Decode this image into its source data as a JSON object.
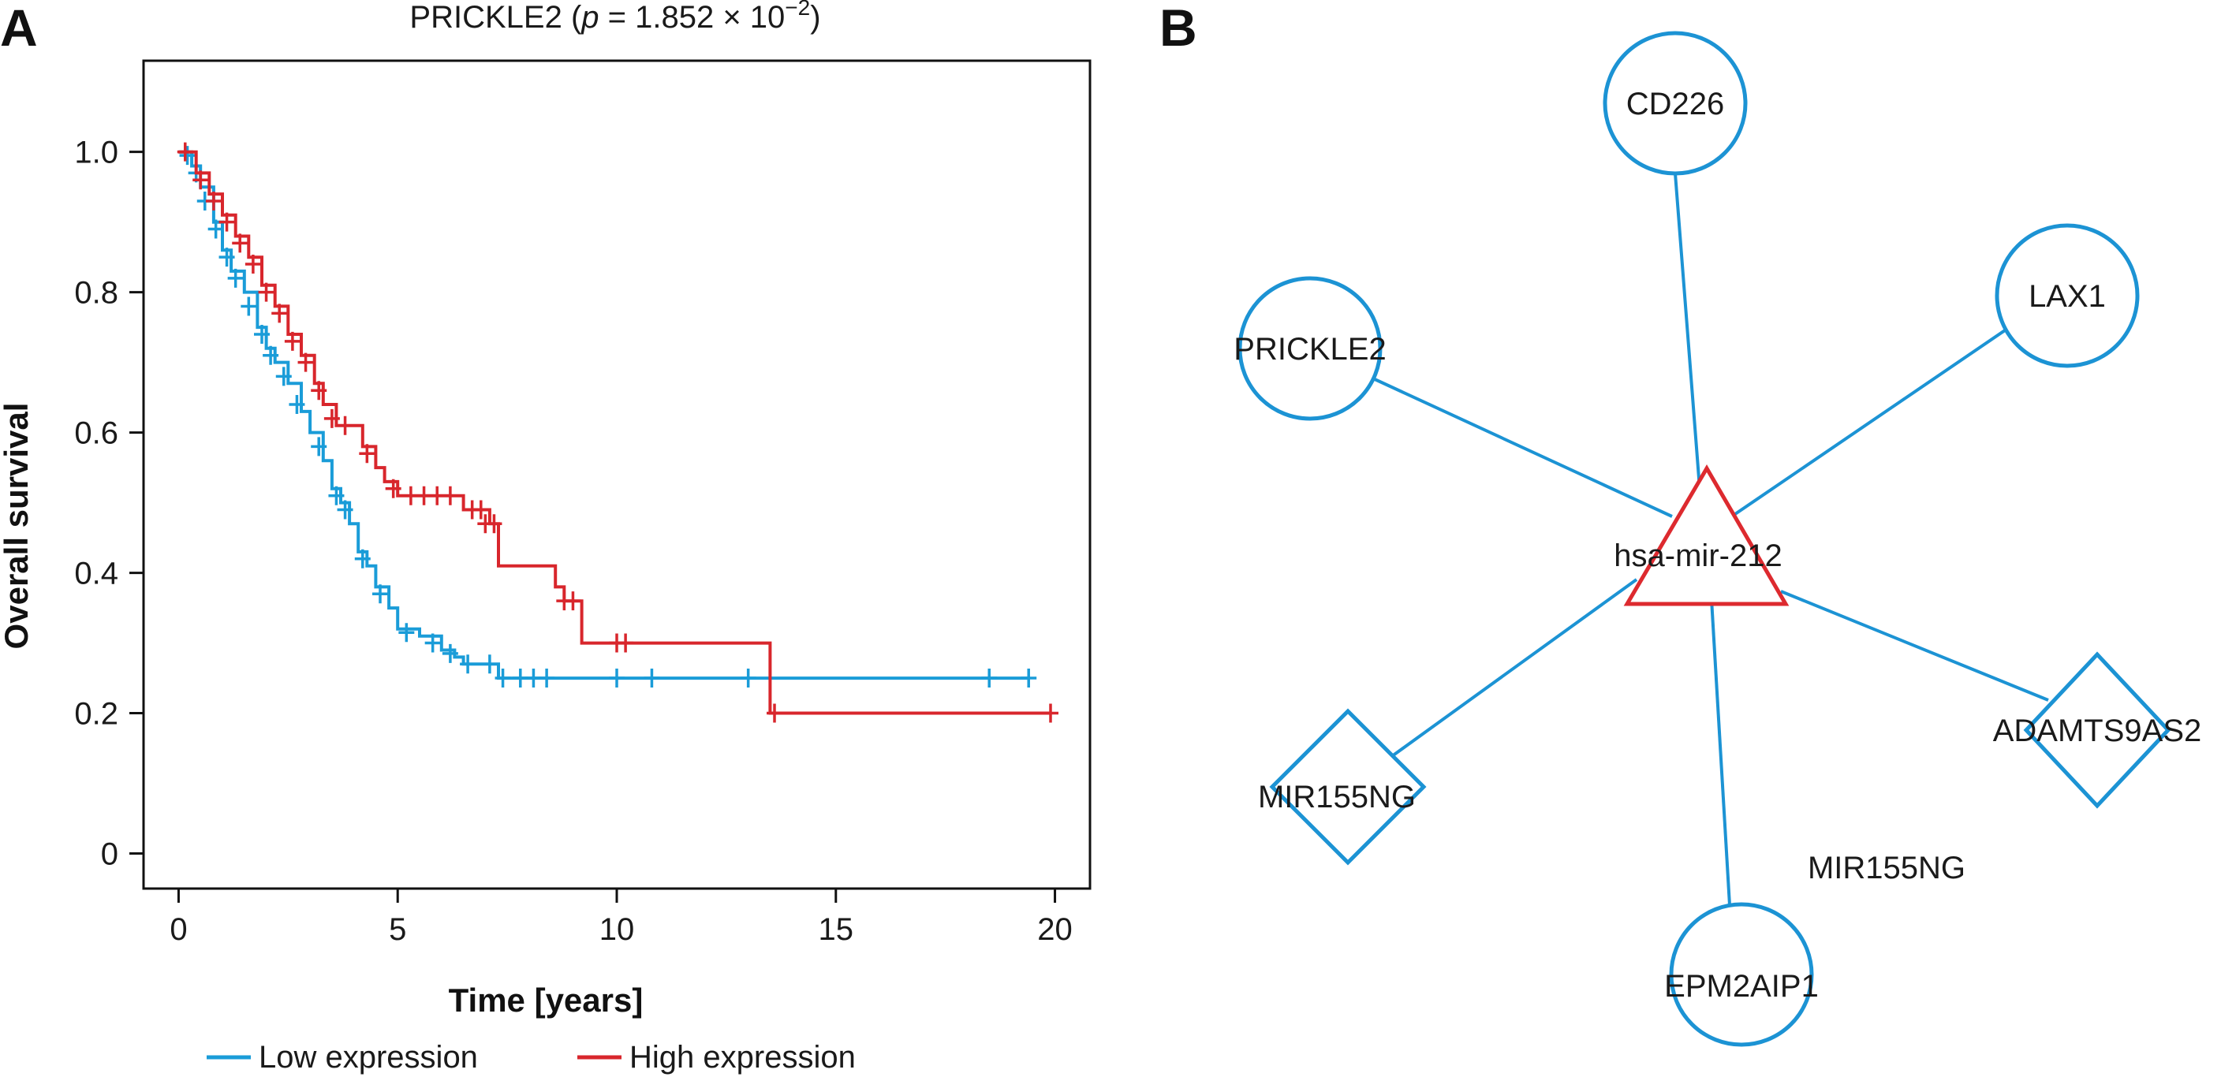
{
  "panel_a": {
    "letter": "A",
    "title_prefix": "PRICKLE2 (",
    "title_p": "p",
    "title_eq": " = 1.852 × 10",
    "title_exp": "−2",
    "title_suffix": ")"
  },
  "panel_b": {
    "letter": "B"
  },
  "chart_data": {
    "type": "line",
    "subtype": "kaplan-meier",
    "title": "PRICKLE2 (p = 1.852 × 10−2)",
    "xlabel": "Time [years]",
    "ylabel": "Overall survival",
    "xlim": [
      -0.8,
      20.8
    ],
    "ylim": [
      -0.05,
      1.13
    ],
    "xticks": [
      0,
      5,
      10,
      15,
      20
    ],
    "xtick_labels": [
      "0",
      "5",
      "10",
      "15",
      "20"
    ],
    "yticks": [
      0,
      0.2,
      0.4,
      0.6,
      0.8,
      1.0
    ],
    "ytick_labels": [
      "0",
      "0.2",
      "0.4",
      "0.6",
      "0.8",
      "1.0"
    ],
    "grid": false,
    "legend_position": "bottom",
    "series": [
      {
        "name": "Low expression",
        "color": "#1a9cd8",
        "steps": [
          [
            0,
            1.0
          ],
          [
            0.3,
            0.98
          ],
          [
            0.5,
            0.95
          ],
          [
            0.8,
            0.9
          ],
          [
            1.0,
            0.86
          ],
          [
            1.2,
            0.83
          ],
          [
            1.5,
            0.8
          ],
          [
            1.8,
            0.75
          ],
          [
            2.0,
            0.72
          ],
          [
            2.2,
            0.7
          ],
          [
            2.5,
            0.67
          ],
          [
            2.8,
            0.63
          ],
          [
            3.0,
            0.6
          ],
          [
            3.3,
            0.56
          ],
          [
            3.5,
            0.52
          ],
          [
            3.7,
            0.5
          ],
          [
            3.9,
            0.47
          ],
          [
            4.1,
            0.43
          ],
          [
            4.3,
            0.41
          ],
          [
            4.5,
            0.38
          ],
          [
            4.8,
            0.35
          ],
          [
            5.0,
            0.32
          ],
          [
            5.5,
            0.31
          ],
          [
            6.0,
            0.29
          ],
          [
            6.3,
            0.28
          ],
          [
            6.5,
            0.27
          ],
          [
            7.3,
            0.25
          ],
          [
            19.4,
            0.25
          ]
        ],
        "censor": [
          [
            0.2,
            0.995
          ],
          [
            0.4,
            0.97
          ],
          [
            0.6,
            0.93
          ],
          [
            0.85,
            0.89
          ],
          [
            1.1,
            0.85
          ],
          [
            1.3,
            0.82
          ],
          [
            1.6,
            0.78
          ],
          [
            1.9,
            0.74
          ],
          [
            2.1,
            0.71
          ],
          [
            2.4,
            0.68
          ],
          [
            2.7,
            0.64
          ],
          [
            3.2,
            0.58
          ],
          [
            3.6,
            0.51
          ],
          [
            3.8,
            0.49
          ],
          [
            4.2,
            0.42
          ],
          [
            4.6,
            0.37
          ],
          [
            5.2,
            0.315
          ],
          [
            5.8,
            0.3
          ],
          [
            6.2,
            0.285
          ],
          [
            6.6,
            0.27
          ],
          [
            7.1,
            0.27
          ],
          [
            7.4,
            0.25
          ],
          [
            7.8,
            0.25
          ],
          [
            8.1,
            0.25
          ],
          [
            8.4,
            0.25
          ],
          [
            10.0,
            0.25
          ],
          [
            10.8,
            0.25
          ],
          [
            13.0,
            0.25
          ],
          [
            18.5,
            0.25
          ],
          [
            19.4,
            0.25
          ]
        ]
      },
      {
        "name": "High expression",
        "color": "#d8262c",
        "steps": [
          [
            0,
            1.0
          ],
          [
            0.4,
            0.97
          ],
          [
            0.7,
            0.94
          ],
          [
            1.0,
            0.91
          ],
          [
            1.3,
            0.88
          ],
          [
            1.6,
            0.85
          ],
          [
            1.9,
            0.81
          ],
          [
            2.2,
            0.78
          ],
          [
            2.5,
            0.74
          ],
          [
            2.8,
            0.71
          ],
          [
            3.1,
            0.67
          ],
          [
            3.3,
            0.64
          ],
          [
            3.6,
            0.61
          ],
          [
            4.2,
            0.58
          ],
          [
            4.5,
            0.55
          ],
          [
            4.7,
            0.53
          ],
          [
            5.0,
            0.51
          ],
          [
            6.5,
            0.49
          ],
          [
            7.1,
            0.47
          ],
          [
            7.3,
            0.41
          ],
          [
            8.6,
            0.38
          ],
          [
            8.8,
            0.36
          ],
          [
            9.2,
            0.3
          ],
          [
            13.5,
            0.3
          ],
          [
            13.5,
            0.2
          ],
          [
            19.9,
            0.2
          ]
        ],
        "censor": [
          [
            0.15,
            1.0
          ],
          [
            0.5,
            0.96
          ],
          [
            0.8,
            0.93
          ],
          [
            1.1,
            0.9
          ],
          [
            1.4,
            0.87
          ],
          [
            1.7,
            0.84
          ],
          [
            2.0,
            0.8
          ],
          [
            2.3,
            0.77
          ],
          [
            2.6,
            0.73
          ],
          [
            2.9,
            0.7
          ],
          [
            3.2,
            0.66
          ],
          [
            3.5,
            0.62
          ],
          [
            3.8,
            0.61
          ],
          [
            4.3,
            0.57
          ],
          [
            4.9,
            0.52
          ],
          [
            5.3,
            0.51
          ],
          [
            5.6,
            0.51
          ],
          [
            5.9,
            0.51
          ],
          [
            6.2,
            0.51
          ],
          [
            6.7,
            0.49
          ],
          [
            6.9,
            0.49
          ],
          [
            7.0,
            0.47
          ],
          [
            7.2,
            0.47
          ],
          [
            8.8,
            0.36
          ],
          [
            9.0,
            0.36
          ],
          [
            10.0,
            0.3
          ],
          [
            10.2,
            0.3
          ],
          [
            13.6,
            0.2
          ],
          [
            19.9,
            0.2
          ]
        ]
      }
    ]
  },
  "network": {
    "center": {
      "label": "hsa-mir-212",
      "shape": "triangle",
      "color": "#dd2a2f"
    },
    "edge_color": "#1c93d4",
    "nodes": [
      {
        "label": "CD226",
        "shape": "circle"
      },
      {
        "label": "LAX1",
        "shape": "circle"
      },
      {
        "label": "PRICKLE2",
        "shape": "circle"
      },
      {
        "label": "ADAMTS9AS2",
        "shape": "diamond"
      },
      {
        "label": "MIR155NG",
        "shape": "diamond"
      },
      {
        "label": "EPM2AIP1",
        "shape": "circle"
      }
    ],
    "floating_label": "MIR155NG"
  }
}
